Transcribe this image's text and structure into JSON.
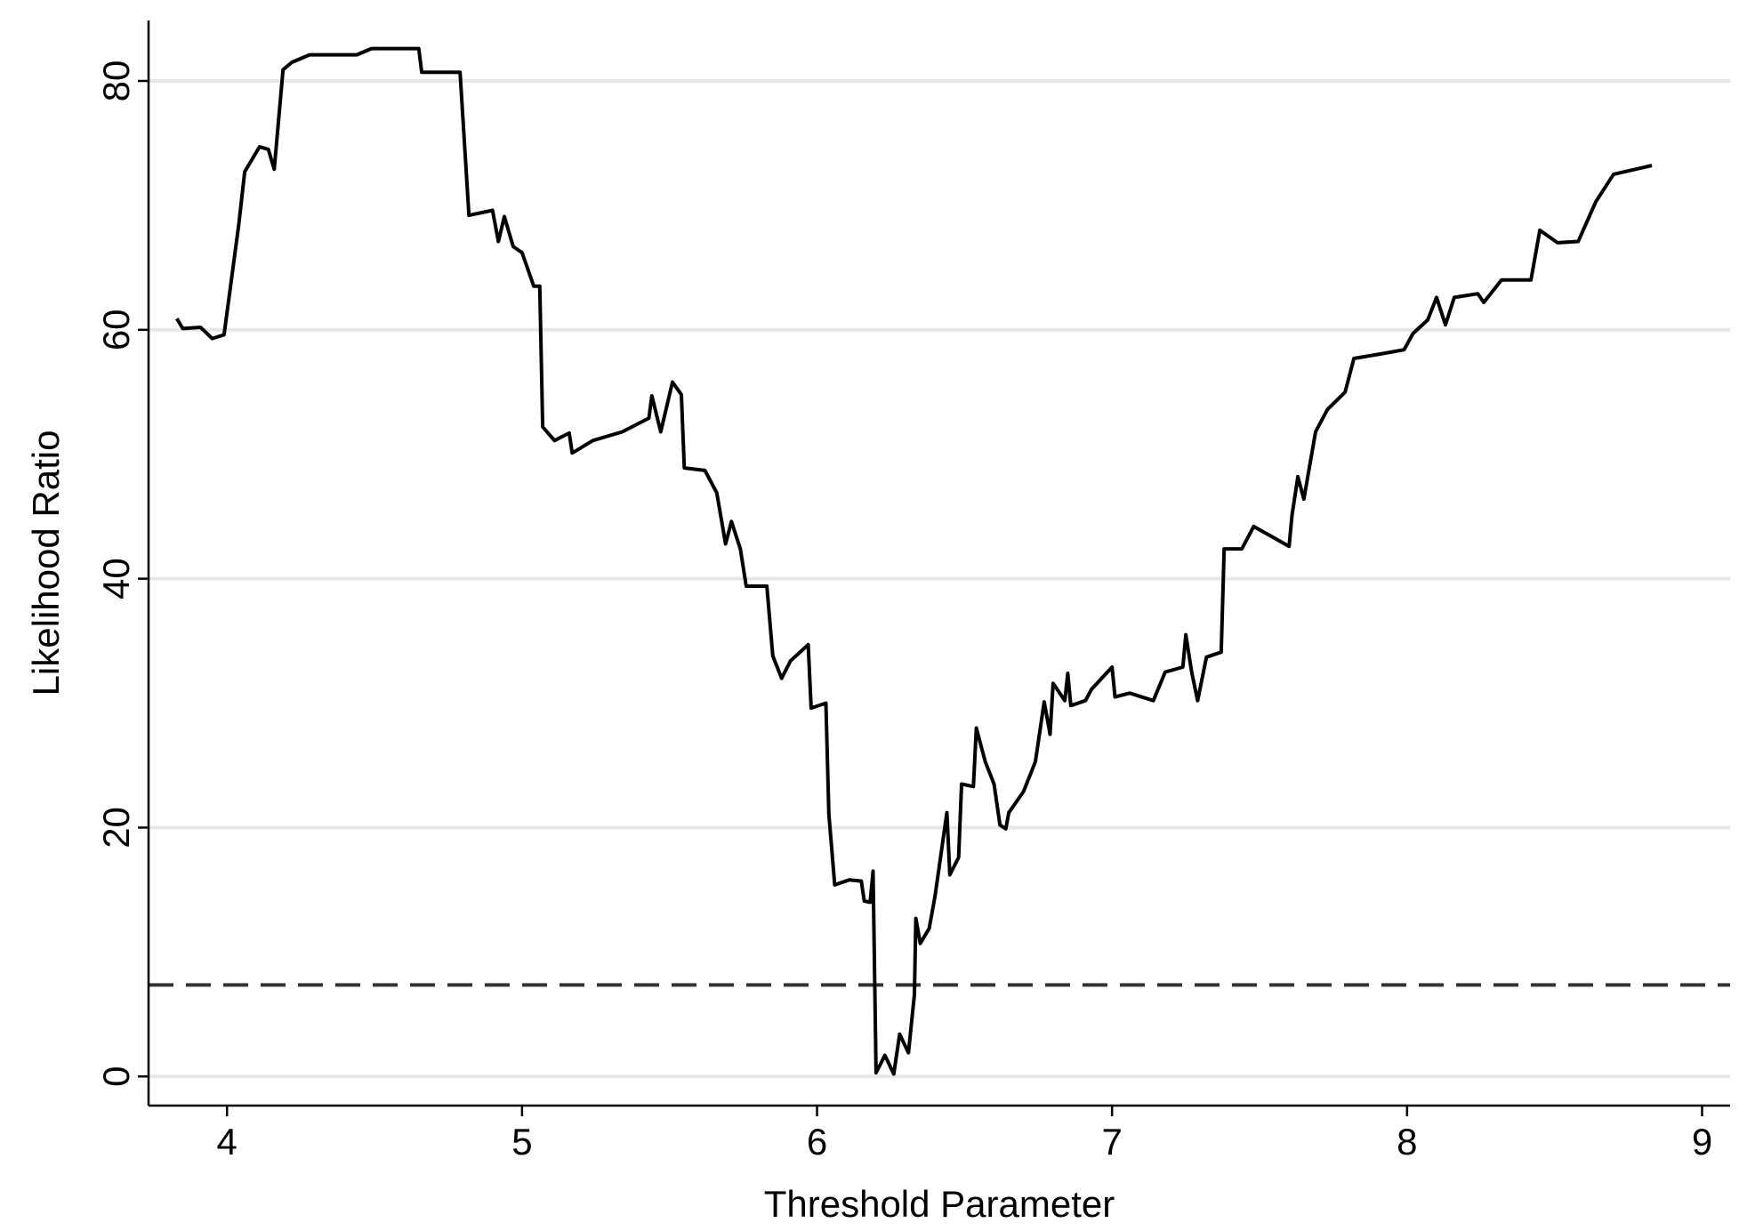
{
  "chart_data": {
    "type": "line",
    "xlabel": "Threshold Parameter",
    "ylabel": "Likelihood Ratio",
    "xlim": [
      3.734,
      9.095
    ],
    "ylim": [
      -2.34,
      84.86
    ],
    "xticks": [
      4,
      5,
      6,
      7,
      8,
      9
    ],
    "yticks": [
      0,
      20,
      40,
      60,
      80
    ],
    "grid": true,
    "hline": {
      "value": 7.35,
      "style": "dashed",
      "color": "#333333"
    },
    "series": [
      {
        "color": "#000000",
        "x": [
          3.83,
          3.85,
          3.91,
          3.95,
          3.99,
          4.04,
          4.06,
          4.11,
          4.14,
          4.16,
          4.19,
          4.22,
          4.28,
          4.44,
          4.49,
          4.65,
          4.66,
          4.79,
          4.82,
          4.9,
          4.92,
          4.94,
          4.97,
          5.0,
          5.04,
          5.06,
          5.07,
          5.11,
          5.16,
          5.17,
          5.24,
          5.34,
          5.43,
          5.44,
          5.47,
          5.51,
          5.54,
          5.55,
          5.62,
          5.66,
          5.69,
          5.71,
          5.74,
          5.76,
          5.83,
          5.85,
          5.88,
          5.91,
          5.97,
          5.98,
          6.03,
          6.04,
          6.06,
          6.11,
          6.15,
          6.16,
          6.18,
          6.19,
          6.2,
          6.23,
          6.26,
          6.28,
          6.31,
          6.33,
          6.335,
          6.35,
          6.38,
          6.4,
          6.44,
          6.45,
          6.48,
          6.49,
          6.53,
          6.54,
          6.57,
          6.6,
          6.62,
          6.64,
          6.65,
          6.7,
          6.74,
          6.77,
          6.79,
          6.8,
          6.84,
          6.85,
          6.86,
          6.91,
          6.93,
          7.0,
          7.01,
          7.06,
          7.14,
          7.18,
          7.24,
          7.25,
          7.27,
          7.29,
          7.32,
          7.37,
          7.38,
          7.44,
          7.48,
          7.6,
          7.61,
          7.63,
          7.65,
          7.69,
          7.73,
          7.79,
          7.82,
          7.92,
          7.99,
          8.02,
          8.07,
          8.1,
          8.13,
          8.16,
          8.24,
          8.26,
          8.32,
          8.42,
          8.45,
          8.51,
          8.58,
          8.64,
          8.7,
          8.83
        ],
        "values": [
          60.9,
          60.1,
          60.2,
          59.3,
          59.6,
          68.5,
          72.7,
          74.7,
          74.5,
          72.9,
          80.9,
          81.5,
          82.1,
          82.1,
          82.6,
          82.6,
          80.7,
          80.7,
          69.2,
          69.6,
          67.1,
          69.1,
          66.7,
          66.2,
          63.5,
          63.5,
          52.2,
          51.1,
          51.7,
          50.1,
          51.1,
          51.8,
          52.9,
          54.7,
          51.8,
          55.8,
          54.8,
          48.9,
          48.7,
          46.9,
          42.8,
          44.6,
          42.4,
          39.4,
          39.4,
          33.8,
          32.0,
          33.4,
          34.7,
          29.6,
          30.0,
          21.1,
          15.4,
          15.8,
          15.7,
          14.1,
          14.0,
          16.5,
          0.3,
          1.7,
          0.2,
          3.4,
          1.9,
          6.6,
          12.7,
          10.7,
          11.9,
          14.5,
          21.2,
          16.2,
          17.6,
          23.5,
          23.3,
          28.0,
          25.3,
          23.5,
          20.2,
          19.9,
          21.2,
          22.9,
          25.3,
          30.1,
          27.5,
          31.6,
          30.2,
          32.4,
          29.8,
          30.2,
          31.1,
          32.9,
          30.5,
          30.8,
          30.2,
          32.5,
          32.9,
          35.5,
          32.5,
          30.2,
          33.7,
          34.1,
          42.4,
          42.4,
          44.2,
          42.6,
          45.1,
          48.2,
          46.4,
          51.8,
          53.6,
          55.0,
          57.7,
          58.1,
          58.4,
          59.7,
          60.8,
          62.6,
          60.4,
          62.6,
          62.9,
          62.2,
          64.0,
          64.0,
          68.0,
          67.0,
          67.1,
          70.3,
          72.5,
          73.2
        ]
      }
    ]
  }
}
